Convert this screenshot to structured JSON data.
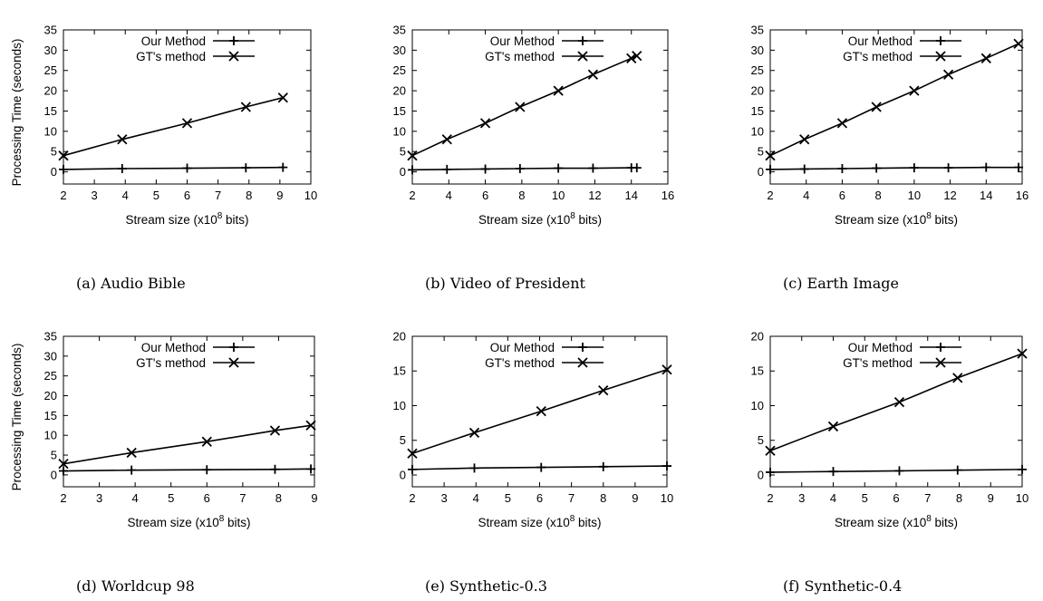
{
  "chart_data": [
    {
      "type": "line",
      "caption": "(a) Audio Bible",
      "xlabel": "Stream size (x10",
      "xlabel_sup": "8",
      "xlabel_suffix": " bits)",
      "ylabel": "Processing Time (seconds)",
      "xlim": [
        2,
        10
      ],
      "ylim": [
        -3,
        35
      ],
      "xticks": [
        2,
        3,
        4,
        5,
        6,
        7,
        8,
        9,
        10
      ],
      "yticks": [
        0,
        5,
        10,
        15,
        20,
        25,
        30,
        35
      ],
      "legend_position": "top-left",
      "series": [
        {
          "name": "Our Method",
          "marker": "plus",
          "x": [
            2,
            3.9,
            6,
            7.9,
            9.1
          ],
          "y": [
            0.6,
            0.8,
            0.9,
            1.0,
            1.1
          ]
        },
        {
          "name": "GT's method",
          "marker": "cross",
          "x": [
            2,
            3.9,
            6,
            7.9,
            9.1
          ],
          "y": [
            4.0,
            8.0,
            12.0,
            16.0,
            18.3
          ]
        }
      ]
    },
    {
      "type": "line",
      "caption": "(b) Video of President",
      "xlabel": "Stream size (x10",
      "xlabel_sup": "8",
      "xlabel_suffix": " bits)",
      "ylabel": "",
      "xlim": [
        2,
        16
      ],
      "ylim": [
        -3,
        35
      ],
      "xticks": [
        2,
        4,
        6,
        8,
        10,
        12,
        14,
        16
      ],
      "yticks": [
        0,
        5,
        10,
        15,
        20,
        25,
        30,
        35
      ],
      "legend_position": "top-left",
      "series": [
        {
          "name": "Our Method",
          "marker": "plus",
          "x": [
            2,
            3.9,
            6,
            7.9,
            10,
            11.9,
            14,
            14.3
          ],
          "y": [
            0.5,
            0.6,
            0.7,
            0.8,
            0.9,
            0.9,
            1.0,
            1.0
          ]
        },
        {
          "name": "GT's method",
          "marker": "cross",
          "x": [
            2,
            3.9,
            6,
            7.9,
            10,
            11.9,
            14,
            14.3
          ],
          "y": [
            4.0,
            8.0,
            12.0,
            16.0,
            20.0,
            24.0,
            28.0,
            28.6
          ]
        }
      ]
    },
    {
      "type": "line",
      "caption": "(c) Earth Image",
      "xlabel": "Stream size (x10",
      "xlabel_sup": "8",
      "xlabel_suffix": " bits)",
      "ylabel": "",
      "xlim": [
        2,
        16
      ],
      "ylim": [
        -3,
        35
      ],
      "xticks": [
        2,
        4,
        6,
        8,
        10,
        12,
        14,
        16
      ],
      "yticks": [
        0,
        5,
        10,
        15,
        20,
        25,
        30,
        35
      ],
      "legend_position": "top-left",
      "series": [
        {
          "name": "Our Method",
          "marker": "plus",
          "x": [
            2,
            3.9,
            6,
            7.9,
            10,
            11.9,
            14,
            15.8
          ],
          "y": [
            0.6,
            0.7,
            0.8,
            0.9,
            1.0,
            1.0,
            1.1,
            1.1
          ]
        },
        {
          "name": "GT's method",
          "marker": "cross",
          "x": [
            2,
            3.9,
            6,
            7.9,
            10,
            11.9,
            14,
            15.8
          ],
          "y": [
            4.0,
            8.0,
            12.0,
            16.0,
            20.0,
            24.0,
            28.0,
            31.6
          ]
        }
      ]
    },
    {
      "type": "line",
      "caption": "(d) Worldcup 98",
      "xlabel": "Stream size (x10",
      "xlabel_sup": "8",
      "xlabel_suffix": " bits)",
      "ylabel": "Processing Time (seconds)",
      "xlim": [
        2,
        9
      ],
      "ylim": [
        -3,
        35
      ],
      "xticks": [
        2,
        3,
        4,
        5,
        6,
        7,
        8,
        9
      ],
      "yticks": [
        0,
        5,
        10,
        15,
        20,
        25,
        30,
        35
      ],
      "legend_position": "top-left",
      "series": [
        {
          "name": "Our Method",
          "marker": "plus",
          "x": [
            2,
            3.9,
            6,
            7.9,
            8.9
          ],
          "y": [
            1.0,
            1.2,
            1.3,
            1.4,
            1.5
          ]
        },
        {
          "name": "GT's method",
          "marker": "cross",
          "x": [
            2,
            3.9,
            6,
            7.9,
            8.9
          ],
          "y": [
            2.8,
            5.6,
            8.4,
            11.2,
            12.5
          ]
        }
      ]
    },
    {
      "type": "line",
      "caption": "(e) Synthetic-0.3",
      "xlabel": "Stream size (x10",
      "xlabel_sup": "8",
      "xlabel_suffix": " bits)",
      "ylabel": "",
      "xlim": [
        2,
        10
      ],
      "ylim": [
        -1.7,
        20
      ],
      "xticks": [
        2,
        3,
        4,
        5,
        6,
        7,
        8,
        9,
        10
      ],
      "yticks": [
        0,
        5,
        10,
        15,
        20
      ],
      "legend_position": "top-left",
      "series": [
        {
          "name": "Our Method",
          "marker": "plus",
          "x": [
            2,
            3.95,
            6.05,
            8.0,
            10
          ],
          "y": [
            0.8,
            1.0,
            1.1,
            1.2,
            1.3
          ]
        },
        {
          "name": "GT's method",
          "marker": "cross",
          "x": [
            2,
            3.95,
            6.05,
            8.0,
            10
          ],
          "y": [
            3.1,
            6.1,
            9.2,
            12.2,
            15.2
          ]
        }
      ]
    },
    {
      "type": "line",
      "caption": "(f) Synthetic-0.4",
      "xlabel": "Stream size (x10",
      "xlabel_sup": "8",
      "xlabel_suffix": " bits)",
      "ylabel": "",
      "xlim": [
        2,
        10
      ],
      "ylim": [
        -1.7,
        20
      ],
      "xticks": [
        2,
        3,
        4,
        5,
        6,
        7,
        8,
        9,
        10
      ],
      "yticks": [
        0,
        5,
        10,
        15,
        20
      ],
      "legend_position": "top-left",
      "series": [
        {
          "name": "Our Method",
          "marker": "plus",
          "x": [
            2,
            4.0,
            6.1,
            7.95,
            10
          ],
          "y": [
            0.4,
            0.5,
            0.6,
            0.7,
            0.8
          ]
        },
        {
          "name": "GT's method",
          "marker": "cross",
          "x": [
            2,
            4.0,
            6.1,
            7.95,
            10
          ],
          "y": [
            3.5,
            7.0,
            10.5,
            14.0,
            17.5
          ]
        }
      ]
    }
  ]
}
